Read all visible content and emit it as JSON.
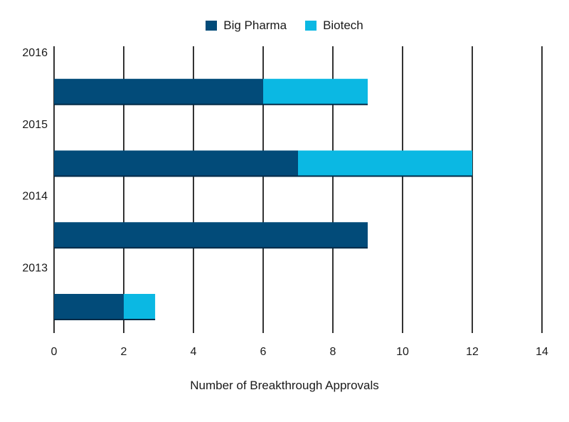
{
  "chart_data": {
    "type": "bar",
    "orientation": "horizontal",
    "stacked": true,
    "categories": [
      "2016",
      "2015",
      "2014",
      "2013"
    ],
    "series": [
      {
        "name": "Big Pharma",
        "values": [
          6,
          7,
          9,
          2
        ],
        "color": "#024b79"
      },
      {
        "name": "Biotech",
        "values": [
          3,
          5,
          0,
          0.9
        ],
        "color": "#0bb8e3"
      }
    ],
    "xlabel": "Number of Breakthrough Approvals",
    "ylabel": "",
    "xlim": [
      0,
      14
    ],
    "xticks": [
      "0",
      "2",
      "4",
      "6",
      "8",
      "10",
      "12",
      "14"
    ],
    "grid": "vertical",
    "legend": "top-center"
  }
}
